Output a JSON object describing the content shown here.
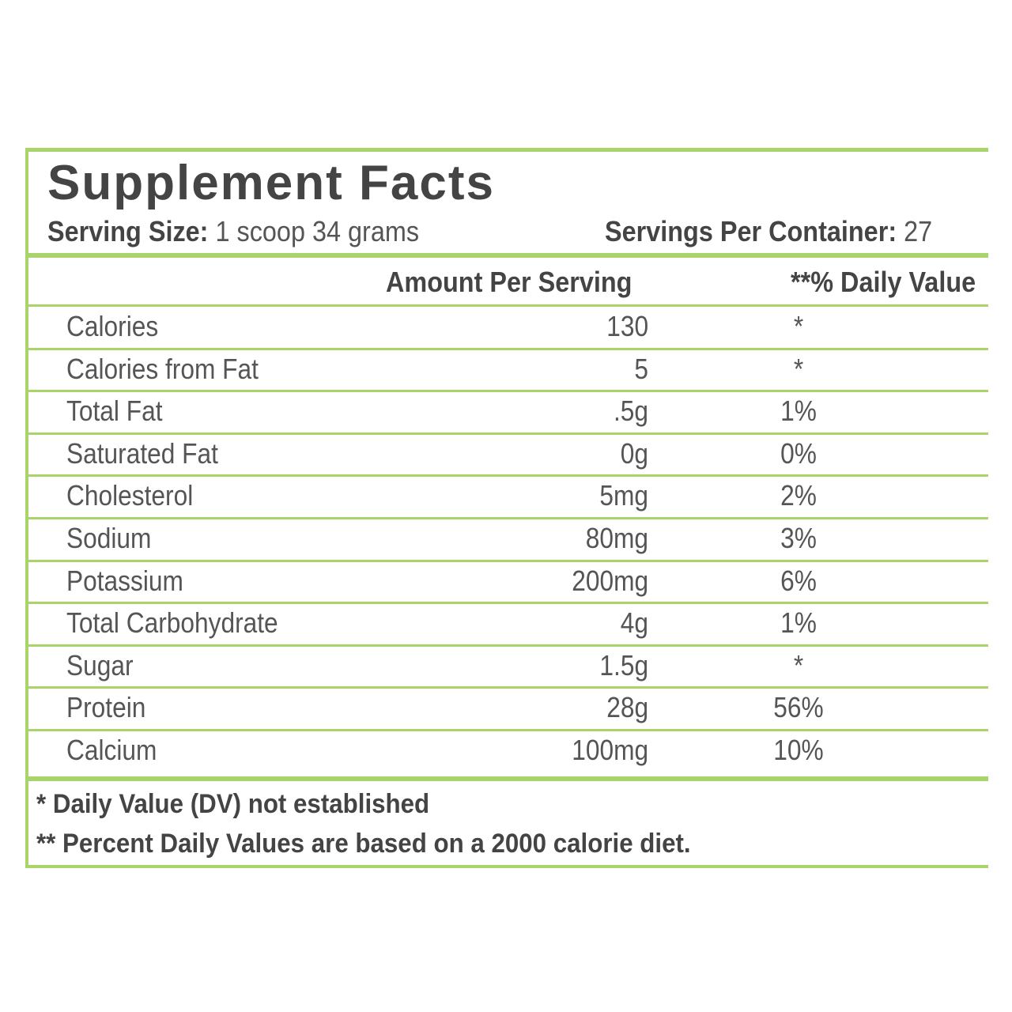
{
  "header": {
    "title": "Supplement Facts",
    "serving_size_label": "Serving Size:",
    "serving_size": "1 scoop 34 grams",
    "servings_label": "Servings Per Container:",
    "servings": "27"
  },
  "table": {
    "columns": [
      "Amount Per Serving",
      "**% Daily Value"
    ],
    "rows": [
      [
        "Calories",
        "130",
        "*"
      ],
      [
        "Calories from Fat",
        "5",
        "*"
      ],
      [
        "Total Fat",
        ".5g",
        "1%"
      ],
      [
        "Saturated Fat",
        "0g",
        "0%"
      ],
      [
        "Cholesterol",
        "5mg",
        "2%"
      ],
      [
        "Sodium",
        "80mg",
        "3%"
      ],
      [
        "Potassium",
        "200mg",
        "6%"
      ],
      [
        "Total Carbohydrate",
        "4g",
        "1%"
      ],
      [
        "Sugar",
        "1.5g",
        "*"
      ],
      [
        "Protein",
        "28g",
        "56%"
      ],
      [
        "Calcium",
        "100mg",
        "10%"
      ]
    ]
  },
  "footnotes": [
    "* Daily Value (DV) not established",
    "** Percent Daily Values are based on a 2000 calorie diet."
  ]
}
